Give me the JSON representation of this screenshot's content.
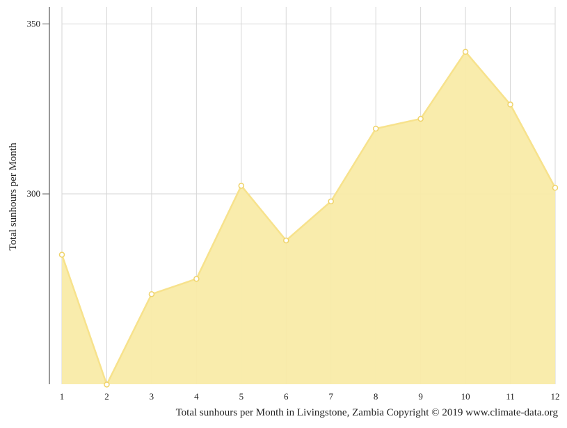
{
  "chart_data": {
    "type": "area",
    "x": [
      1,
      2,
      3,
      4,
      5,
      6,
      7,
      8,
      9,
      10,
      11,
      12
    ],
    "values": [
      282.1,
      243.9,
      270.5,
      275.0,
      302.4,
      286.3,
      297.8,
      319.2,
      322.1,
      341.8,
      326.3,
      301.8
    ],
    "x_ticks": [
      "1",
      "2",
      "3",
      "4",
      "5",
      "6",
      "7",
      "8",
      "9",
      "10",
      "11",
      "12"
    ],
    "y_ticks": [
      300,
      350
    ],
    "ylim": [
      244,
      355
    ],
    "xlim": [
      1,
      12
    ],
    "ylabel": "Total sunhours per Month",
    "caption": "Total sunhours per Month in Livingstone, Zambia Copyright © 2019 www.climate-data.org",
    "grid": true,
    "colors": {
      "fill": "#f9eba8",
      "line": "#f7e28c",
      "marker_fill": "#ffffff",
      "marker_stroke": "#efd36a",
      "grid": "#d6d6d6",
      "axis": "#555555"
    }
  }
}
